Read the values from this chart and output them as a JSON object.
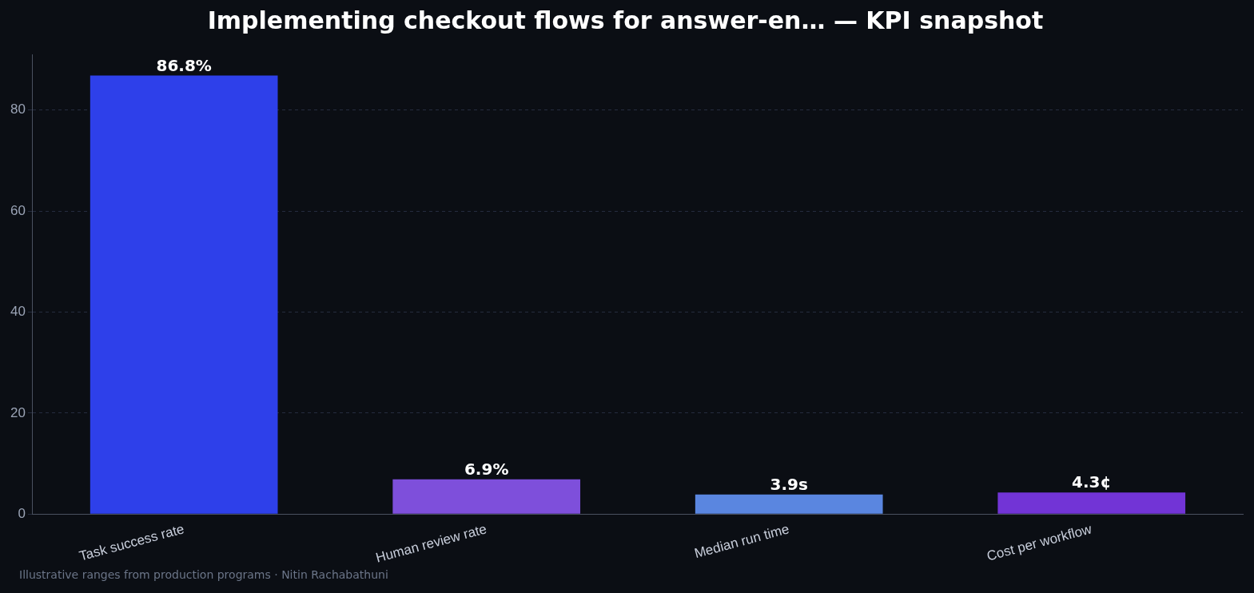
{
  "chart_data": {
    "type": "bar",
    "title": "Implementing checkout flows for answer-en… — KPI snapshot",
    "categories": [
      "Task success rate",
      "Human review rate",
      "Median run time",
      "Cost per workflow"
    ],
    "values": [
      86.8,
      6.9,
      3.9,
      4.3
    ],
    "colors": [
      "#2e40ea",
      "#7e4fdb",
      "#5a86e0",
      "#7234d6"
    ],
    "value_labels": [
      "86.8%",
      "6.9%",
      "3.9s",
      "4.3¢"
    ],
    "ylim": [
      0,
      91
    ],
    "yticks": [
      0,
      20,
      40,
      60,
      80
    ],
    "grid": "y",
    "legend": false,
    "annotations": [
      "Illustrative ranges from production programs · Nitin Rachabathuni"
    ]
  }
}
